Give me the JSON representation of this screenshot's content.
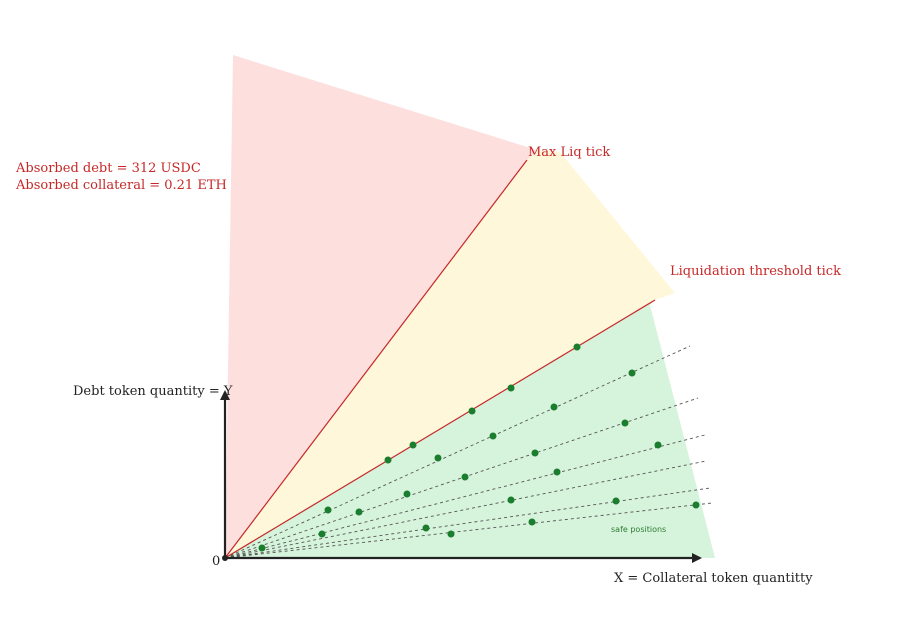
{
  "annotation": {
    "absorbed_debt": "Absorbed debt = 312 USDC",
    "absorbed_collateral": "Absorbed collateral = 0.21 ETH"
  },
  "ticks": {
    "max_liq": "Max Liq tick",
    "liq_threshold": "Liquidation threshold tick"
  },
  "axes": {
    "y_label": "Debt token quantity = Y",
    "x_label": "X = Collateral token quantitty",
    "origin": "0"
  },
  "safe_label": "safe positions",
  "colors": {
    "red_zone": "#fde0de",
    "yellow_zone": "#fef7da",
    "green_zone": "#d6f3dc",
    "boundary_line": "#c62828",
    "dot": "#1b7d2e",
    "axis": "#222222",
    "guide_line": "#555555"
  }
}
